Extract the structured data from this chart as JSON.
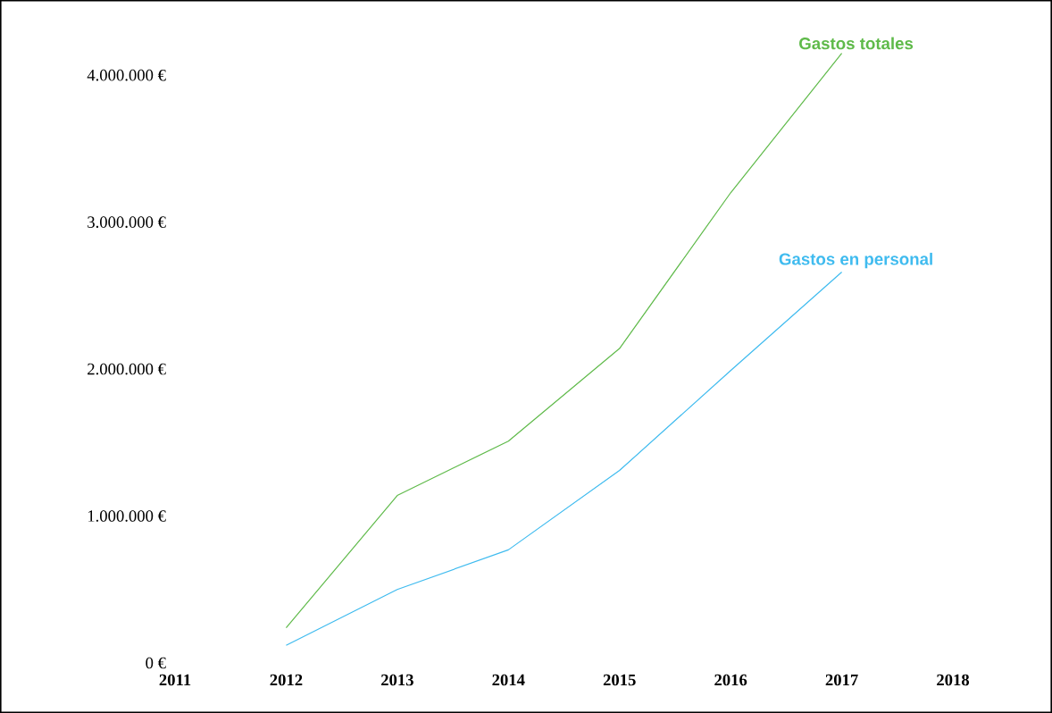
{
  "chart_data": {
    "type": "line",
    "x": [
      2012,
      2013,
      2014,
      2015,
      2016,
      2017
    ],
    "series": [
      {
        "name": "Gastos totales",
        "color": "#5fba4a",
        "values": [
          240000,
          1140000,
          1510000,
          2140000,
          3200000,
          4150000
        ]
      },
      {
        "name": "Gastos en personal",
        "color": "#3fbbef",
        "values": [
          120000,
          500000,
          770000,
          1310000,
          1990000,
          2660000
        ]
      }
    ],
    "xlim": [
      2011,
      2018
    ],
    "ylim": [
      0,
      4500000
    ],
    "xticks": [
      2011,
      2012,
      2013,
      2014,
      2015,
      2016,
      2017,
      2018
    ],
    "yticks": [
      {
        "value": 0,
        "label": "0 €"
      },
      {
        "value": 1000000,
        "label": "1.000.000 €"
      },
      {
        "value": 2000000,
        "label": "2.000.000 €"
      },
      {
        "value": 3000000,
        "label": "3.000.000 €"
      },
      {
        "value": 4000000,
        "label": "4.000.000 €"
      }
    ],
    "grid": false,
    "marker": "none",
    "line_style": "solid"
  }
}
